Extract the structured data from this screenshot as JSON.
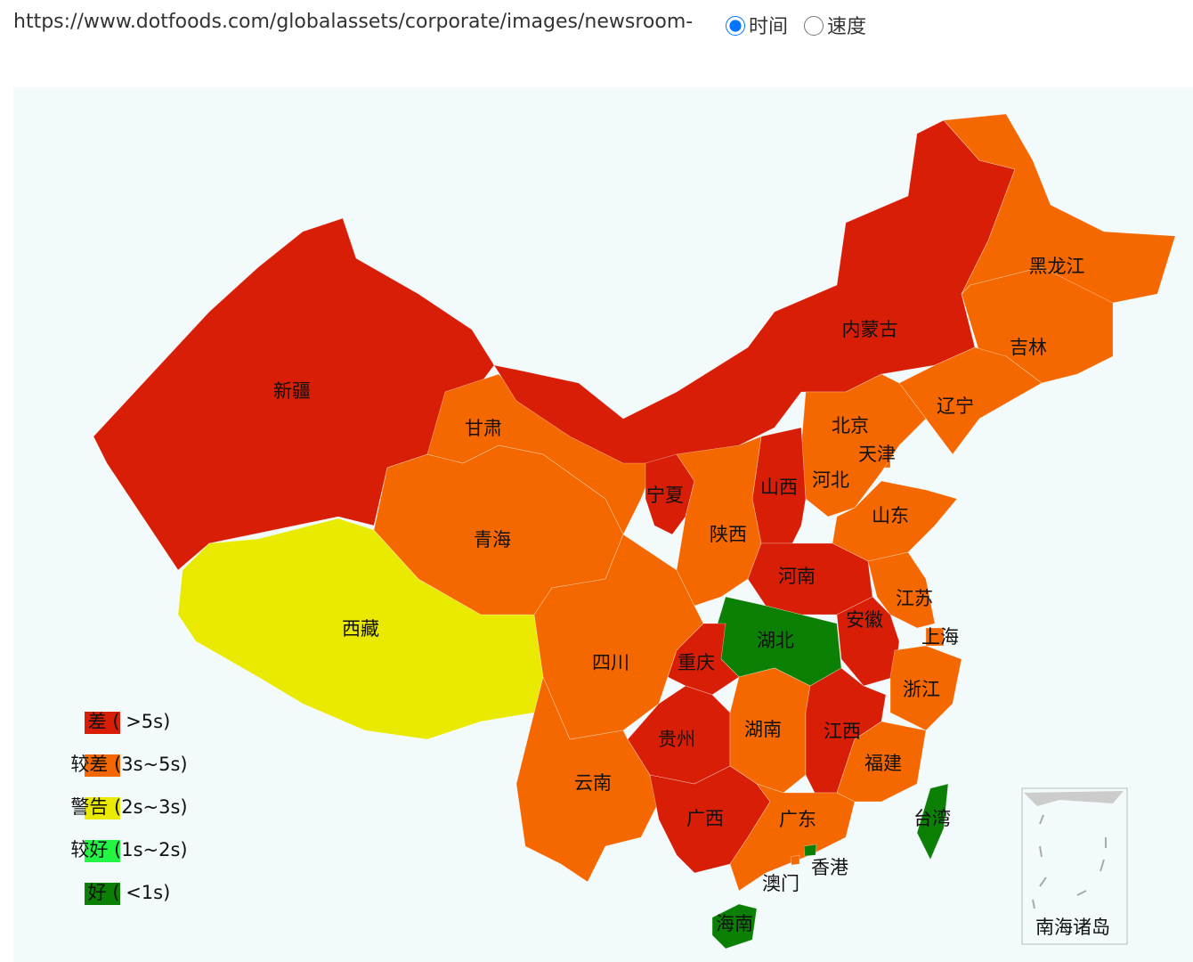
{
  "header": {
    "url": "https://www.dotfoods.com/globalassets/corporate/images/newsroom-",
    "options": [
      {
        "label": "时间",
        "checked": true
      },
      {
        "label": "速度",
        "checked": false
      }
    ]
  },
  "map": {
    "regions": [
      {
        "name": "新疆",
        "color": "#d81e06"
      },
      {
        "name": "西藏",
        "color": "#eaea00"
      },
      {
        "name": "青海",
        "color": "#f56800"
      },
      {
        "name": "甘肃",
        "color": "#f56800"
      },
      {
        "name": "内蒙古",
        "color": "#d81e06"
      },
      {
        "name": "黑龙江",
        "color": "#f56800"
      },
      {
        "name": "吉林",
        "color": "#f56800"
      },
      {
        "name": "辽宁",
        "color": "#f56800"
      },
      {
        "name": "北京",
        "color": "#f56800"
      },
      {
        "name": "天津",
        "color": "#f56800"
      },
      {
        "name": "河北",
        "color": "#f56800"
      },
      {
        "name": "山西",
        "color": "#d81e06"
      },
      {
        "name": "山东",
        "color": "#f56800"
      },
      {
        "name": "宁夏",
        "color": "#d81e06"
      },
      {
        "name": "陕西",
        "color": "#f56800"
      },
      {
        "name": "河南",
        "color": "#d81e06"
      },
      {
        "name": "江苏",
        "color": "#f56800"
      },
      {
        "name": "上海",
        "color": "#f56800"
      },
      {
        "name": "安徽",
        "color": "#d81e06"
      },
      {
        "name": "浙江",
        "color": "#f56800"
      },
      {
        "name": "湖北",
        "color": "#0b8005"
      },
      {
        "name": "重庆",
        "color": "#d81e06"
      },
      {
        "name": "四川",
        "color": "#f56800"
      },
      {
        "name": "贵州",
        "color": "#d81e06"
      },
      {
        "name": "湖南",
        "color": "#f56800"
      },
      {
        "name": "江西",
        "color": "#d81e06"
      },
      {
        "name": "福建",
        "color": "#f56800"
      },
      {
        "name": "云南",
        "color": "#f56800"
      },
      {
        "name": "广西",
        "color": "#d81e06"
      },
      {
        "name": "广东",
        "color": "#f56800"
      },
      {
        "name": "香港",
        "color": "#0b8005"
      },
      {
        "name": "澳门",
        "color": "#f56800"
      },
      {
        "name": "海南",
        "color": "#0b8005"
      },
      {
        "name": "台湾",
        "color": "#0b8005"
      }
    ],
    "legend": [
      {
        "label": "差 ( >5s)",
        "color": "#d81e06"
      },
      {
        "label": "较差 (3s~5s)",
        "color": "#f56800"
      },
      {
        "label": "警告 (2s~3s)",
        "color": "#eaea00"
      },
      {
        "label": "较好 (1s~2s)",
        "color": "#22f543"
      },
      {
        "label": "好 ( <1s)",
        "color": "#0b8005"
      }
    ],
    "inset_label": "南海诸岛"
  }
}
